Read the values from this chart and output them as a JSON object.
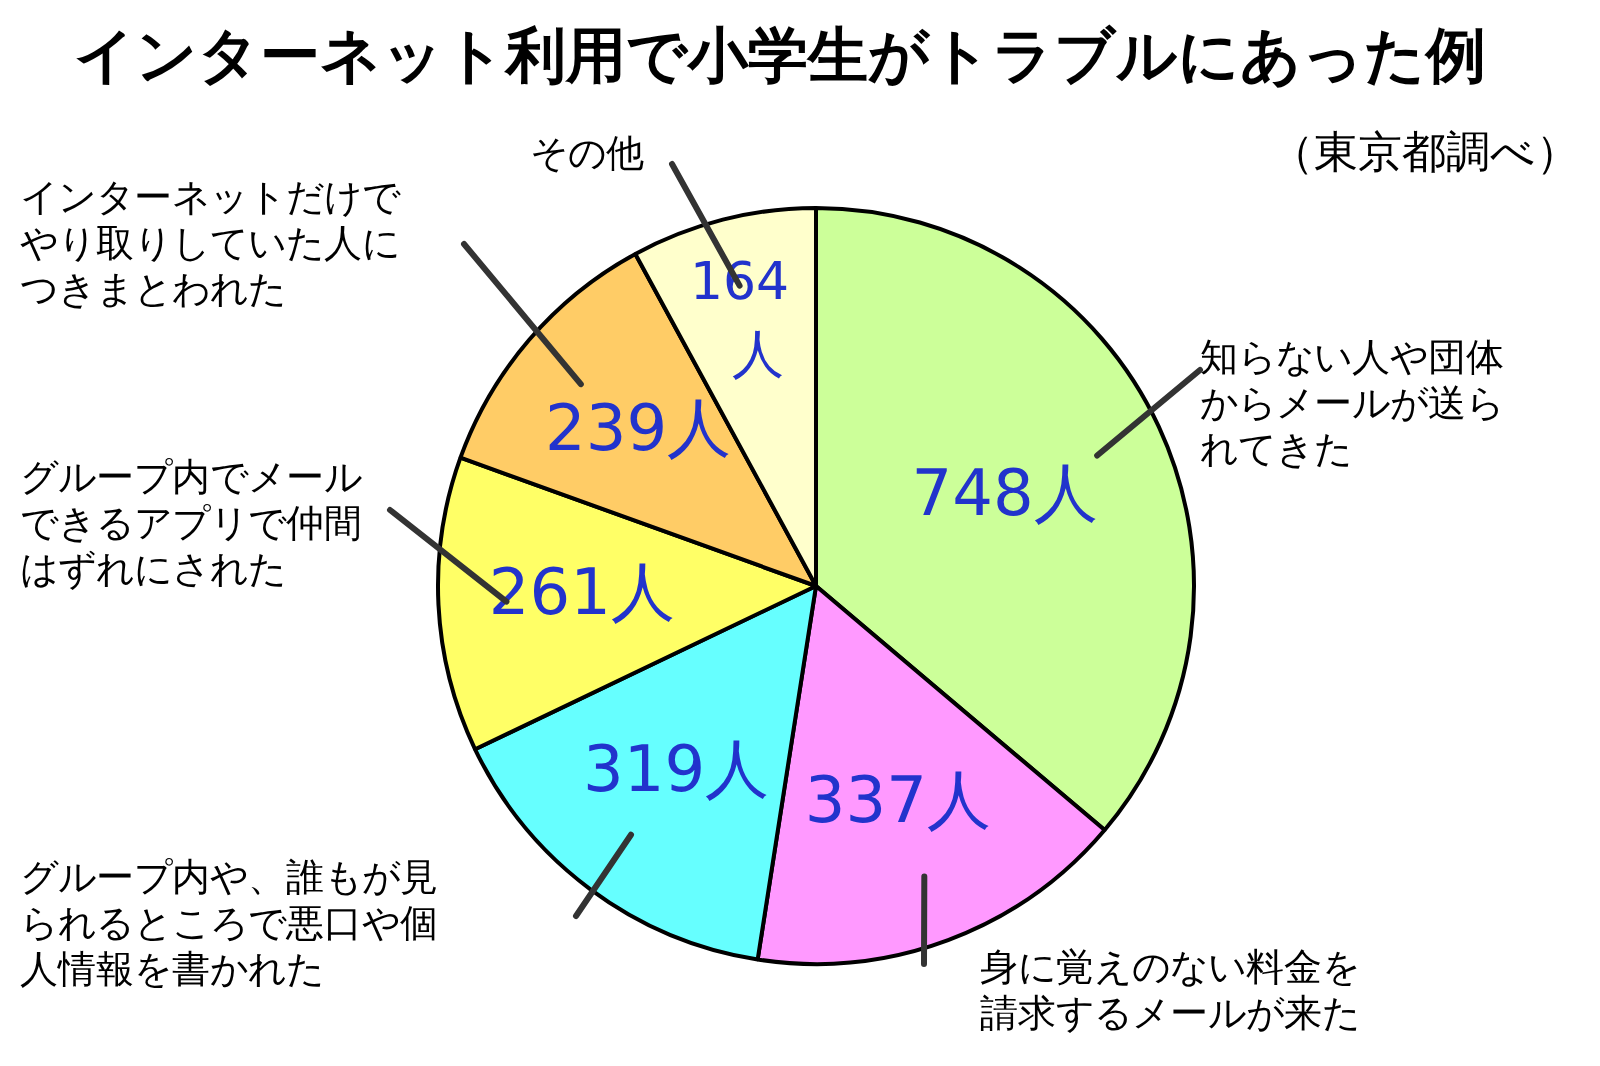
{
  "chart_data": {
    "type": "pie",
    "title": "インターネット利用で小学生がトラブルにあった例",
    "subtitle": "（東京都調べ）",
    "categories": [
      "知らない人や団体からメールが送られてきた",
      "身に覚えのない料金を請求するメールが来た",
      "グループ内や、誰もが見られるところで悪口や個人情報を書かれた",
      "グループ内でメールできるアプリで仲間はずれにされた",
      "インターネットだけでやり取りしていた人につきまとわれた",
      "その他"
    ],
    "values": [
      748,
      337,
      319,
      261,
      239,
      164
    ],
    "value_labels": [
      "748人",
      "337人",
      "319人",
      "261人",
      "239人",
      "164人"
    ],
    "colors": [
      "#ccff99",
      "#ff99ff",
      "#66ffff",
      "#ffff66",
      "#ffcc66",
      "#ffffcc"
    ],
    "legend": false
  }
}
